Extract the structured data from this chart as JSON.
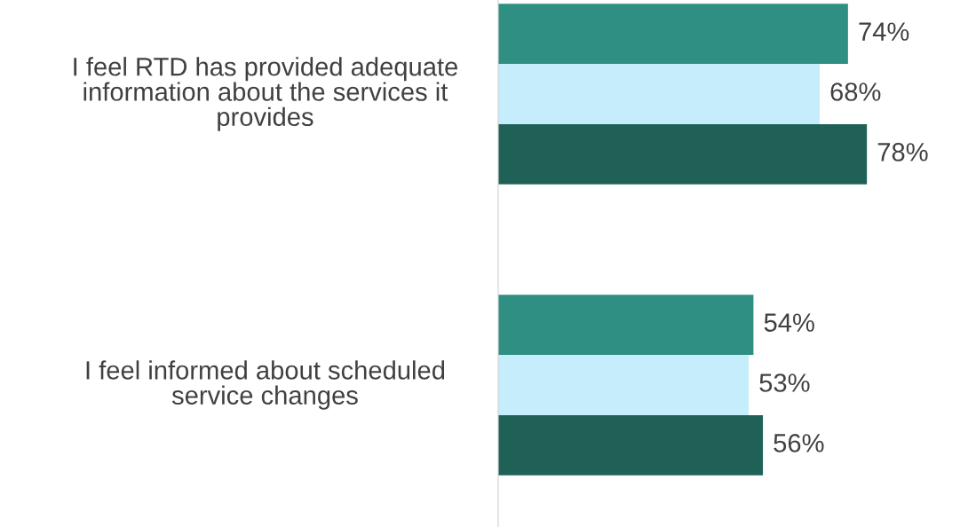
{
  "chart_data": {
    "type": "bar",
    "orientation": "horizontal",
    "categories": [
      "I feel RTD has provided adequate information about the services it provides",
      "I feel informed about scheduled service changes"
    ],
    "series": [
      {
        "color": "#2e8f82",
        "values": [
          74,
          54
        ],
        "value_labels": [
          "74%",
          "54%"
        ]
      },
      {
        "color": "#c5edfb",
        "values": [
          68,
          53
        ],
        "value_labels": [
          "68%",
          "53%"
        ]
      },
      {
        "color": "#1f6157",
        "values": [
          78,
          56
        ],
        "value_labels": [
          "78%",
          "56%"
        ]
      }
    ],
    "tick_labels": "y",
    "grid": false,
    "legend": false
  }
}
